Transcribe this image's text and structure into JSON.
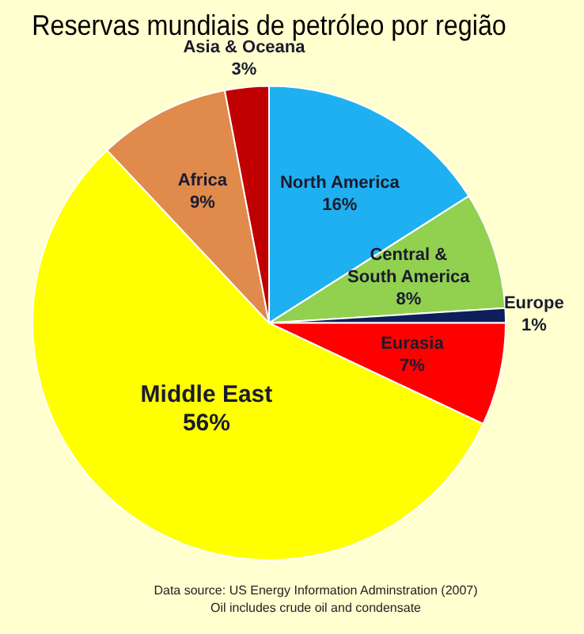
{
  "chart_data": {
    "type": "pie",
    "title": "Reservas mundiais de petróleo por região",
    "categories": [
      "North America",
      "Central & South America",
      "Europe",
      "Eurasia",
      "Middle East",
      "Africa",
      "Asia & Oceana"
    ],
    "values": [
      16,
      8,
      1,
      7,
      56,
      9,
      3
    ],
    "value_labels": [
      "16%",
      "8%",
      "1%",
      "7%",
      "56%",
      "9%",
      "3%"
    ],
    "colors": [
      "#1eb0f0",
      "#92d050",
      "#0c1f5a",
      "#ff0000",
      "#ffff00",
      "#e08a4c",
      "#c00000"
    ],
    "legend": false,
    "annotations": [
      "Data source: US Energy Information Adminstration (2007)",
      "Oil includes crude oil and condensate"
    ]
  }
}
